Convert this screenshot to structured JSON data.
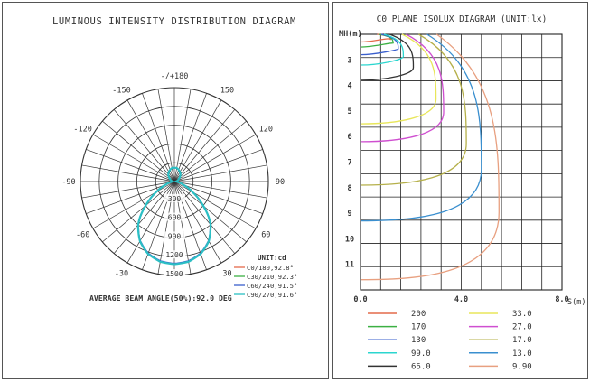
{
  "chart_data": [
    {
      "type": "polar",
      "title": "LUMINOUS INTENSITY DISTRIBUTION DIAGRAM",
      "angle_labels": [
        {
          "deg": 180,
          "label": "-/+180"
        },
        {
          "deg": 150,
          "label": "150"
        },
        {
          "deg": -150,
          "label": "-150"
        },
        {
          "deg": 120,
          "label": "120"
        },
        {
          "deg": -120,
          "label": "-120"
        },
        {
          "deg": 90,
          "label": "90"
        },
        {
          "deg": -90,
          "label": "-90"
        },
        {
          "deg": 60,
          "label": "60"
        },
        {
          "deg": -60,
          "label": "-60"
        },
        {
          "deg": 30,
          "label": "30"
        },
        {
          "deg": -30,
          "label": "-30"
        }
      ],
      "radial_labels": [
        "300",
        "600",
        "900",
        "1200",
        "1500"
      ],
      "r_max": 1500,
      "unit_label": "UNIT:cd",
      "series": [
        {
          "name": "C0/180,92.8°",
          "color": "#e46a4a"
        },
        {
          "name": "C30/210,92.3°",
          "color": "#3cb043"
        },
        {
          "name": "C60/240,91.5°",
          "color": "#3a5fcd"
        },
        {
          "name": "C90/270,91.6°",
          "color": "#2bbfc4"
        }
      ],
      "curve": {
        "angles_deg": [
          0,
          10,
          20,
          30,
          40,
          45,
          50,
          60,
          70,
          80,
          90,
          100,
          120,
          140,
          160,
          170,
          180
        ],
        "intensity_cd": [
          1320,
          1300,
          1230,
          1100,
          900,
          760,
          600,
          330,
          150,
          60,
          25,
          40,
          80,
          150,
          200,
          220,
          220
        ]
      },
      "footer": "AVERAGE BEAM ANGLE(50%):92.0 DEG"
    },
    {
      "type": "line",
      "title": "C0 PLANE ISOLUX DIAGRAM (UNIT:lx)",
      "ylabel": "MH(m)",
      "xlabel": "S(m)",
      "x_ticks": [
        "0.0",
        "4.0",
        "8.0"
      ],
      "y_ticks": [
        "3",
        "4",
        "5",
        "6",
        "7",
        "8",
        "9",
        "10",
        "11"
      ],
      "xlim": [
        0,
        8
      ],
      "ylim": [
        2,
        12
      ],
      "series": [
        {
          "name": "200",
          "color": "#e46a4a",
          "mh": 2.3,
          "s": 1.2
        },
        {
          "name": "170",
          "color": "#3cb043",
          "mh": 2.5,
          "s": 1.3
        },
        {
          "name": "130",
          "color": "#3a5fcd",
          "mh": 2.8,
          "s": 1.5
        },
        {
          "name": "99.0",
          "color": "#2bd6cf",
          "mh": 3.2,
          "s": 1.7
        },
        {
          "name": "66.0",
          "color": "#333333",
          "mh": 3.8,
          "s": 2.1
        },
        {
          "name": "33.0",
          "color": "#e8e65a",
          "mh": 5.5,
          "s": 3.0
        },
        {
          "name": "27.0",
          "color": "#cf4fd0",
          "mh": 6.2,
          "s": 3.3
        },
        {
          "name": "17.0",
          "color": "#b5b04a",
          "mh": 7.9,
          "s": 4.2
        },
        {
          "name": "13.0",
          "color": "#3a8fcf",
          "mh": 9.3,
          "s": 4.8
        },
        {
          "name": "9.90",
          "color": "#e8a080",
          "mh": 11.6,
          "s": 5.5
        }
      ]
    }
  ]
}
